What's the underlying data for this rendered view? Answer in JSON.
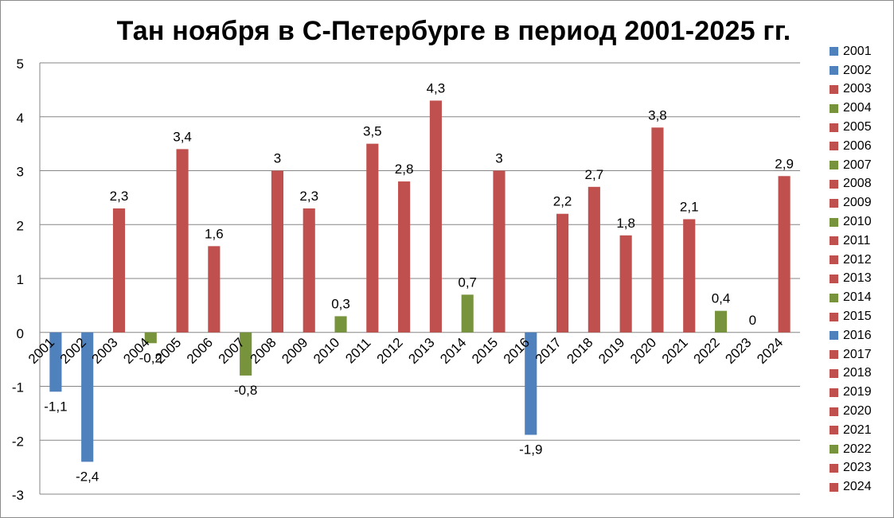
{
  "chart_data": {
    "type": "bar",
    "title": "Тан ноября в С-Петербурге в период 2001-2025 гг.",
    "xlabel": "",
    "ylabel": "",
    "ylim": [
      -3,
      5
    ],
    "yticks": [
      "-3",
      "-2",
      "-1",
      "0",
      "1",
      "2",
      "3",
      "4",
      "5"
    ],
    "grid": true,
    "legend_position": "right",
    "categories": [
      "2001",
      "2002",
      "2003",
      "2004",
      "2005",
      "2006",
      "2007",
      "2008",
      "2009",
      "2010",
      "2011",
      "2012",
      "2013",
      "2014",
      "2015",
      "2016",
      "2017",
      "2018",
      "2019",
      "2020",
      "2021",
      "2022",
      "2023",
      "2024"
    ],
    "values": [
      -1.1,
      -2.4,
      2.3,
      -0.2,
      3.4,
      1.6,
      -0.8,
      3,
      2.3,
      0.3,
      3.5,
      2.8,
      4.3,
      0.7,
      3,
      -1.9,
      2.2,
      2.7,
      1.8,
      3.8,
      2.1,
      0.4,
      0,
      2.9
    ],
    "value_labels": [
      "-1,1",
      "-2,4",
      "2,3",
      "-0,2",
      "3,4",
      "1,6",
      "-0,8",
      "3",
      "2,3",
      "0,3",
      "3,5",
      "2,8",
      "4,3",
      "0,7",
      "3",
      "-1,9",
      "2,2",
      "2,7",
      "1,8",
      "3,8",
      "2,1",
      "0,4",
      "0",
      "2,9"
    ],
    "colors": [
      "#4f81bd",
      "#4f81bd",
      "#c0504d",
      "#77933c",
      "#c0504d",
      "#c0504d",
      "#77933c",
      "#c0504d",
      "#c0504d",
      "#77933c",
      "#c0504d",
      "#c0504d",
      "#c0504d",
      "#77933c",
      "#c0504d",
      "#4f81bd",
      "#c0504d",
      "#c0504d",
      "#c0504d",
      "#c0504d",
      "#c0504d",
      "#77933c",
      "#c0504d",
      "#c0504d"
    ],
    "legend": [
      "2001",
      "2002",
      "2003",
      "2004",
      "2005",
      "2006",
      "2007",
      "2008",
      "2009",
      "2010",
      "2011",
      "2012",
      "2013",
      "2014",
      "2015",
      "2016",
      "2017",
      "2018",
      "2019",
      "2020",
      "2021",
      "2022",
      "2023",
      "2024"
    ]
  }
}
